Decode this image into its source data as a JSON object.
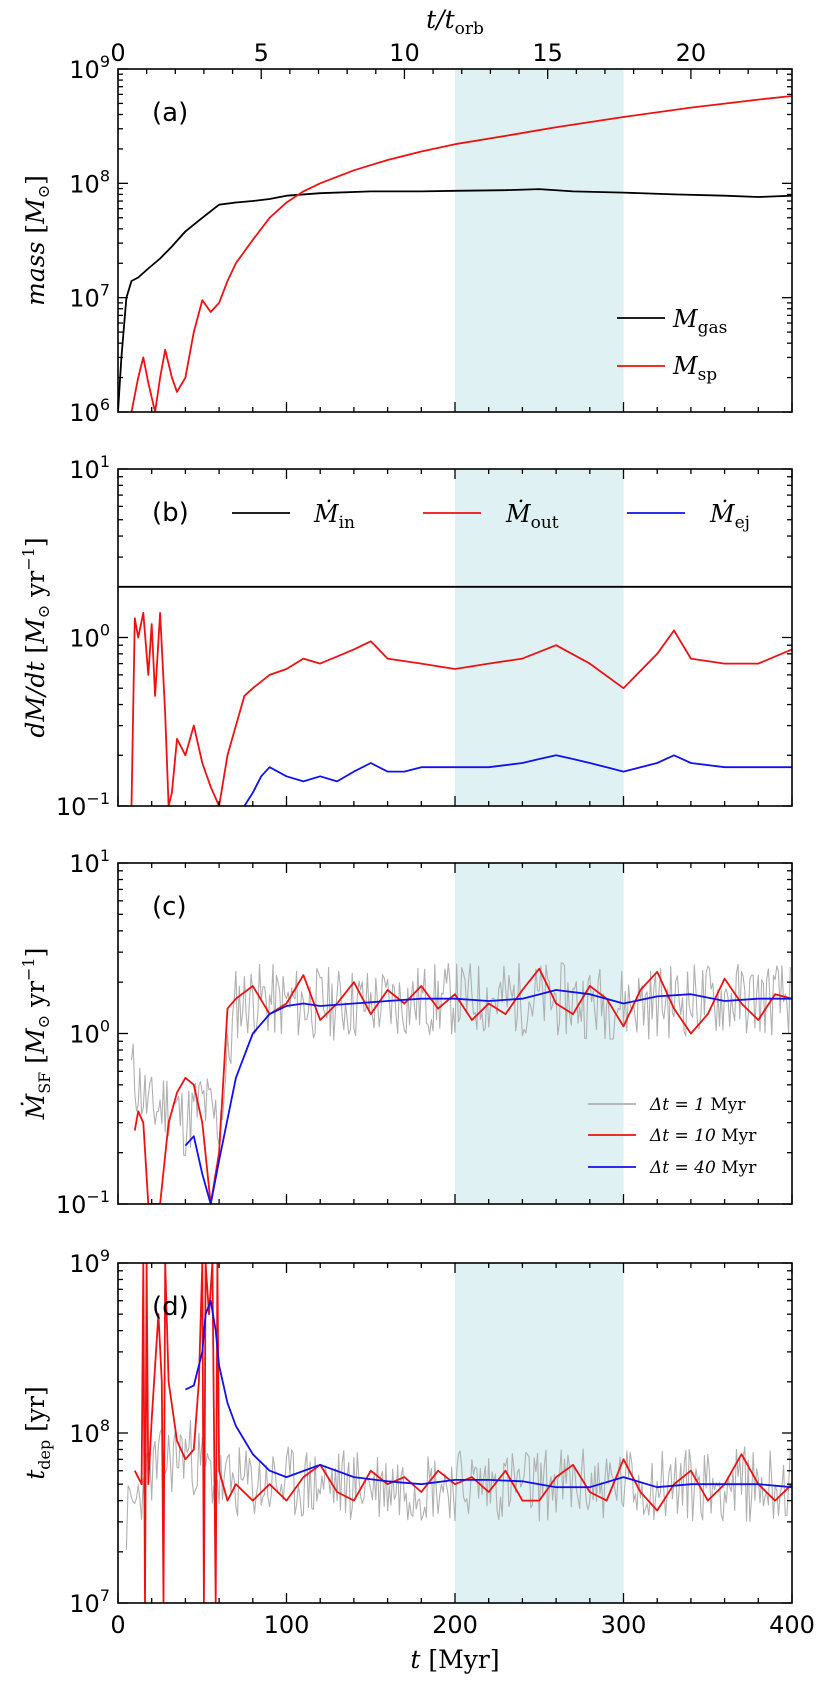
{
  "figure": {
    "top_axis_label": "t/t_orb",
    "bottom_axis_label": "t [Myr]",
    "shaded_region": [
      200,
      300
    ]
  },
  "colors": {
    "gas": "#000000",
    "red": "#ee1111",
    "blue": "#1111ee",
    "gray": "#b0b0b0",
    "shade": "#dff1f3"
  },
  "chart_data": [
    {
      "type": "line",
      "panel": "(a)",
      "ylabel": "mass [M_⊙]",
      "xlim": [
        0,
        400
      ],
      "ylim_log": [
        1000000.0,
        1000000000.0
      ],
      "yscale": "log",
      "top_xaxis": {
        "label": "t/t_orb",
        "ticks": [
          0,
          5,
          10,
          15,
          20
        ],
        "myr_per_orbit": 17.0
      },
      "yticks": [
        "10^6",
        "10^7",
        "10^8",
        "10^9"
      ],
      "legend": [
        "M_gas",
        "M_sp"
      ],
      "series": [
        {
          "name": "M_gas",
          "color": "black",
          "x": [
            0,
            2,
            5,
            8,
            12,
            18,
            25,
            32,
            40,
            50,
            60,
            70,
            80,
            90,
            100,
            120,
            150,
            180,
            200,
            230,
            250,
            270,
            300,
            330,
            360,
            380,
            400
          ],
          "y": [
            1000000.0,
            3000000.0,
            10000000.0,
            14000000.0,
            15000000.0,
            18000000.0,
            22000000.0,
            28000000.0,
            38000000.0,
            50000000.0,
            65000000.0,
            68000000.0,
            70000000.0,
            73000000.0,
            78000000.0,
            82000000.0,
            85000000.0,
            85000000.0,
            86000000.0,
            87000000.0,
            89000000.0,
            85000000.0,
            83000000.0,
            80000000.0,
            78000000.0,
            76000000.0,
            78000000.0
          ]
        },
        {
          "name": "M_sp",
          "color": "red",
          "x": [
            8,
            12,
            15,
            18,
            22,
            25,
            28,
            32,
            35,
            40,
            45,
            50,
            55,
            60,
            65,
            70,
            80,
            90,
            100,
            110,
            120,
            140,
            160,
            180,
            200,
            230,
            260,
            300,
            340,
            380,
            400
          ],
          "y": [
            1000000.0,
            2000000.0,
            3000000.0,
            1800000.0,
            1000000.0,
            2000000.0,
            3500000.0,
            2000000.0,
            1500000.0,
            2000000.0,
            5000000.0,
            9500000.0,
            7500000.0,
            9000000.0,
            14000000.0,
            20000000.0,
            32000000.0,
            50000000.0,
            68000000.0,
            85000000.0,
            100000000.0,
            130000000.0,
            160000000.0,
            190000000.0,
            220000000.0,
            260000000.0,
            310000000.0,
            380000000.0,
            460000000.0,
            540000000.0,
            580000000.0
          ]
        }
      ]
    },
    {
      "type": "line",
      "panel": "(b)",
      "ylabel": "dM/dt [M_⊙ yr^-1]",
      "xlim": [
        0,
        400
      ],
      "ylim_log": [
        0.1,
        10
      ],
      "yscale": "log",
      "yticks": [
        "10^-1",
        "10^0",
        "10^1"
      ],
      "legend": [
        "Ṁ_in",
        "Ṁ_out",
        "Ṁ_ej"
      ],
      "series": [
        {
          "name": "Ṁ_in",
          "color": "black",
          "x": [
            0,
            400
          ],
          "y": [
            2.0,
            2.0
          ]
        },
        {
          "name": "Ṁ_out",
          "color": "red",
          "x": [
            8,
            10,
            12,
            15,
            18,
            20,
            22,
            25,
            28,
            30,
            32,
            35,
            40,
            45,
            50,
            55,
            60,
            65,
            70,
            75,
            80,
            90,
            100,
            110,
            120,
            140,
            150,
            160,
            180,
            200,
            220,
            240,
            260,
            280,
            300,
            320,
            330,
            340,
            360,
            380,
            400
          ],
          "y": [
            0.1,
            1.3,
            1.0,
            1.4,
            0.6,
            1.2,
            0.45,
            1.4,
            0.35,
            0.1,
            0.12,
            0.25,
            0.2,
            0.3,
            0.18,
            0.13,
            0.1,
            0.2,
            0.3,
            0.45,
            0.5,
            0.6,
            0.65,
            0.75,
            0.7,
            0.85,
            0.95,
            0.75,
            0.7,
            0.65,
            0.7,
            0.75,
            0.9,
            0.7,
            0.5,
            0.8,
            1.1,
            0.75,
            0.7,
            0.7,
            0.85
          ]
        },
        {
          "name": "Ṁ_ej",
          "color": "blue",
          "x": [
            75,
            80,
            85,
            90,
            100,
            110,
            120,
            130,
            140,
            150,
            160,
            170,
            180,
            200,
            220,
            240,
            250,
            260,
            270,
            280,
            290,
            300,
            320,
            330,
            340,
            360,
            380,
            400
          ],
          "y": [
            0.1,
            0.12,
            0.15,
            0.17,
            0.15,
            0.14,
            0.15,
            0.14,
            0.16,
            0.18,
            0.16,
            0.16,
            0.17,
            0.17,
            0.17,
            0.18,
            0.19,
            0.2,
            0.19,
            0.18,
            0.17,
            0.16,
            0.18,
            0.2,
            0.18,
            0.17,
            0.17,
            0.17
          ]
        }
      ]
    },
    {
      "type": "line",
      "panel": "(c)",
      "ylabel": "Ṁ_SF [M_⊙ yr^-1]",
      "xlim": [
        0,
        400
      ],
      "ylim_log": [
        0.1,
        10
      ],
      "yscale": "log",
      "yticks": [
        "10^-1",
        "10^0",
        "10^1"
      ],
      "legend": [
        "Δt = 1 Myr",
        "Δt = 10 Myr",
        "Δt = 40 Myr"
      ],
      "series": [
        {
          "name": "Δt = 1 Myr",
          "color": "gray",
          "noisy": true,
          "noise_amp": 0.22,
          "seed": 11,
          "x": [
            8,
            20,
            30,
            40,
            50,
            60,
            70,
            80,
            100,
            150,
            200,
            250,
            300,
            350,
            400
          ],
          "y": [
            0.6,
            0.35,
            0.4,
            0.3,
            0.4,
            0.3,
            1.5,
            1.6,
            1.5,
            1.5,
            1.6,
            1.6,
            1.5,
            1.6,
            1.6
          ]
        },
        {
          "name": "Δt = 10 Myr",
          "color": "red",
          "x": [
            10,
            12,
            15,
            18,
            20,
            25,
            30,
            35,
            40,
            45,
            50,
            55,
            60,
            65,
            70,
            80,
            90,
            100,
            110,
            120,
            130,
            140,
            150,
            160,
            170,
            180,
            190,
            200,
            210,
            220,
            230,
            240,
            250,
            260,
            270,
            280,
            290,
            300,
            310,
            320,
            330,
            340,
            350,
            360,
            370,
            380,
            390,
            400
          ],
          "y": [
            0.27,
            0.35,
            0.3,
            0.1,
            0.1,
            0.1,
            0.3,
            0.45,
            0.55,
            0.5,
            0.3,
            0.1,
            0.2,
            1.4,
            1.6,
            1.9,
            1.3,
            1.5,
            2.2,
            1.2,
            1.5,
            2.0,
            1.3,
            1.8,
            1.5,
            1.9,
            1.4,
            1.7,
            1.2,
            1.5,
            1.3,
            1.8,
            2.4,
            1.5,
            1.3,
            1.9,
            1.6,
            1.1,
            1.8,
            2.3,
            1.4,
            1.0,
            1.3,
            2.1,
            1.5,
            1.2,
            1.7,
            1.6
          ]
        },
        {
          "name": "Δt = 40 Myr",
          "color": "blue",
          "x": [
            40,
            45,
            50,
            55,
            60,
            70,
            80,
            90,
            100,
            110,
            120,
            140,
            160,
            180,
            200,
            220,
            240,
            260,
            280,
            300,
            320,
            340,
            360,
            380,
            400
          ],
          "y": [
            0.22,
            0.25,
            0.15,
            0.1,
            0.18,
            0.55,
            1.0,
            1.3,
            1.45,
            1.5,
            1.45,
            1.5,
            1.55,
            1.6,
            1.6,
            1.55,
            1.6,
            1.8,
            1.7,
            1.5,
            1.65,
            1.7,
            1.55,
            1.6,
            1.6
          ]
        }
      ]
    },
    {
      "type": "line",
      "panel": "(d)",
      "ylabel": "t_dep [yr]",
      "xlabel": "t [Myr]",
      "xlim": [
        0,
        400
      ],
      "ylim_log": [
        10000000.0,
        1000000000.0
      ],
      "yscale": "log",
      "xticks": [
        0,
        100,
        200,
        300,
        400
      ],
      "yticks": [
        "10^7",
        "10^8",
        "10^9"
      ],
      "series": [
        {
          "name": "Δt = 1 Myr",
          "color": "gray",
          "noisy": true,
          "noise_amp": 0.22,
          "seed": 23,
          "x": [
            5,
            20,
            40,
            60,
            80,
            100,
            150,
            200,
            250,
            300,
            350,
            400
          ],
          "y": [
            30000000.0,
            60000000.0,
            80000000.0,
            50000000.0,
            50000000.0,
            50000000.0,
            50000000.0,
            50000000.0,
            50000000.0,
            50000000.0,
            50000000.0,
            50000000.0
          ]
        },
        {
          "name": "Δt = 10 Myr",
          "color": "red",
          "x": [
            10,
            14,
            15,
            16,
            17,
            18,
            20,
            24,
            26,
            27,
            28,
            30,
            35,
            40,
            45,
            48,
            50,
            51,
            52,
            54,
            56,
            58,
            59,
            60,
            65,
            70,
            80,
            90,
            100,
            110,
            120,
            130,
            140,
            150,
            160,
            170,
            180,
            190,
            200,
            210,
            220,
            230,
            240,
            250,
            260,
            270,
            280,
            290,
            300,
            310,
            320,
            330,
            340,
            350,
            360,
            370,
            380,
            390,
            400
          ],
          "y": [
            60000000.0,
            50000000.0,
            1000000000.0,
            10000000.0,
            1000000000.0,
            50000000.0,
            120000000.0,
            500000000.0,
            200000000.0,
            10000000.0,
            1000000000.0,
            200000000.0,
            90000000.0,
            70000000.0,
            80000000.0,
            200000000.0,
            1000000000.0,
            10000000.0,
            1000000000.0,
            500000000.0,
            1000000000.0,
            10000000.0,
            1000000000.0,
            60000000.0,
            40000000.0,
            50000000.0,
            40000000.0,
            50000000.0,
            40000000.0,
            55000000.0,
            65000000.0,
            45000000.0,
            40000000.0,
            60000000.0,
            50000000.0,
            55000000.0,
            45000000.0,
            60000000.0,
            50000000.0,
            55000000.0,
            45000000.0,
            60000000.0,
            40000000.0,
            40000000.0,
            55000000.0,
            65000000.0,
            45000000.0,
            40000000.0,
            70000000.0,
            45000000.0,
            35000000.0,
            50000000.0,
            60000000.0,
            40000000.0,
            50000000.0,
            75000000.0,
            50000000.0,
            40000000.0,
            50000000.0
          ]
        },
        {
          "name": "Δt = 40 Myr",
          "color": "blue",
          "x": [
            40,
            45,
            50,
            52,
            55,
            58,
            60,
            65,
            70,
            80,
            90,
            100,
            120,
            140,
            160,
            180,
            200,
            220,
            240,
            260,
            280,
            300,
            320,
            340,
            360,
            380,
            400
          ],
          "y": [
            180000000.0,
            190000000.0,
            300000000.0,
            500000000.0,
            600000000.0,
            400000000.0,
            250000000.0,
            150000000.0,
            110000000.0,
            75000000.0,
            60000000.0,
            55000000.0,
            65000000.0,
            55000000.0,
            52000000.0,
            50000000.0,
            53000000.0,
            53000000.0,
            52000000.0,
            48000000.0,
            48000000.0,
            55000000.0,
            48000000.0,
            50000000.0,
            50000000.0,
            50000000.0,
            48000000.0
          ]
        }
      ]
    }
  ]
}
